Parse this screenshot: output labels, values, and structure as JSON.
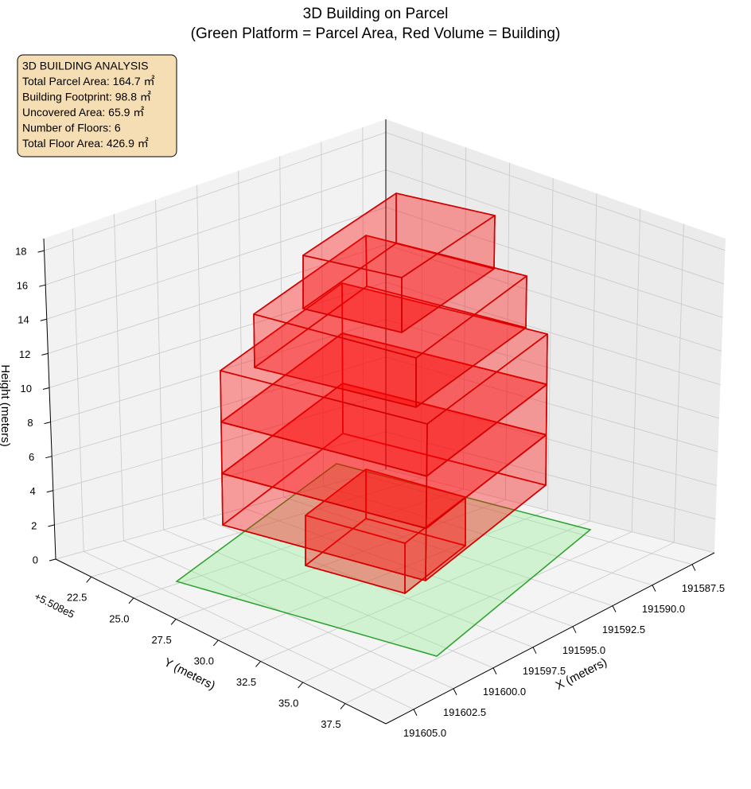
{
  "chart_data": {
    "type": "3d",
    "title": "3D Building on Parcel",
    "subtitle": "(Green Platform = Parcel Area, Red Volume = Building)",
    "annotation": [
      "3D BUILDING ANALYSIS",
      "Total Parcel Area: 164.7 ㎡",
      "Building Footprint: 98.8 ㎡",
      "Uncovered Area: 65.9 ㎡",
      "Number of Floors: 6",
      "Total Floor Area: 426.9 ㎡"
    ],
    "xlabel": "X (meters)",
    "ylabel": "Y (meters)",
    "zlabel": "Height (meters)",
    "y_offset_label": "+5.508e5",
    "xlim": [
      191586.1,
      191606.75
    ],
    "xticks": [
      191587.5,
      {
        "value": 191590,
        "label": "191590.0"
      },
      191592.5,
      {
        "value": 191595,
        "label": "191595.0"
      },
      191597.5,
      {
        "value": 191600,
        "label": "191600.0"
      },
      191602.5,
      {
        "value": 191605,
        "label": "191605.0"
      }
    ],
    "ylim": [
      20.4,
      39.9
    ],
    "yticks": [
      22.5,
      {
        "value": 25,
        "label": "25.0"
      },
      27.5,
      {
        "value": 30,
        "label": "30.0"
      },
      32.5,
      {
        "value": 35,
        "label": "35.0"
      },
      37.5
    ],
    "zlim": [
      0,
      18.7
    ],
    "zticks": [
      0,
      2,
      4,
      6,
      8,
      10,
      12,
      14,
      16,
      18
    ],
    "grid": true
  }
}
